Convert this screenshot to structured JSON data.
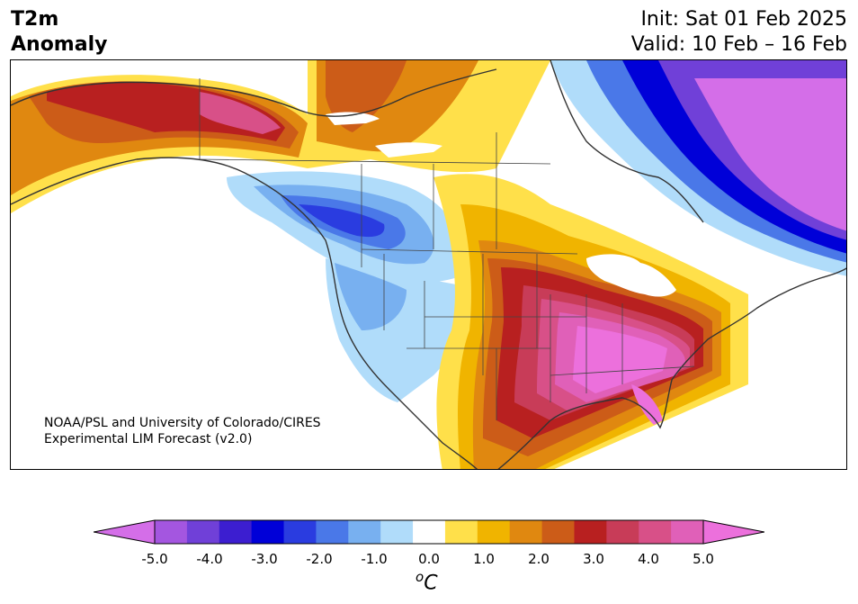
{
  "header": {
    "title_line1": "T2m",
    "title_line2": "Anomaly",
    "init": "Init: Sat 01 Feb 2025",
    "valid": "Valid: 10 Feb – 16 Feb"
  },
  "credit": {
    "line1": "NOAA/PSL and University of Colorado/CIRES",
    "line2": "Experimental LIM Forecast (v2.0)"
  },
  "colorbar": {
    "units": "oC",
    "unit_super": "o",
    "unit_main": "C",
    "levels": [
      -5.0,
      -4.5,
      -4.0,
      -3.5,
      -3.0,
      -2.5,
      -2.0,
      -1.5,
      -1.0,
      -0.5,
      0.5,
      1.0,
      1.5,
      2.0,
      2.5,
      3.0,
      3.5,
      4.0,
      4.5,
      5.0
    ],
    "colors": [
      "#d46ee8",
      "#a456e0",
      "#7040d8",
      "#3c1ed0",
      "#0000d8",
      "#2a3ce0",
      "#4a78e8",
      "#78b0f0",
      "#b0dcfa",
      "#ffffff",
      "#ffe04a",
      "#f0b400",
      "#e08810",
      "#cc5c18",
      "#b82020",
      "#c83c58",
      "#d85088",
      "#e060b8",
      "#ec70dc"
    ],
    "tick_labels": [
      "-5.0",
      "-4.0",
      "-3.0",
      "-2.0",
      "-1.0",
      "0.0",
      "1.0",
      "2.0",
      "3.0",
      "4.0",
      "5.0"
    ],
    "extend": "both"
  }
}
